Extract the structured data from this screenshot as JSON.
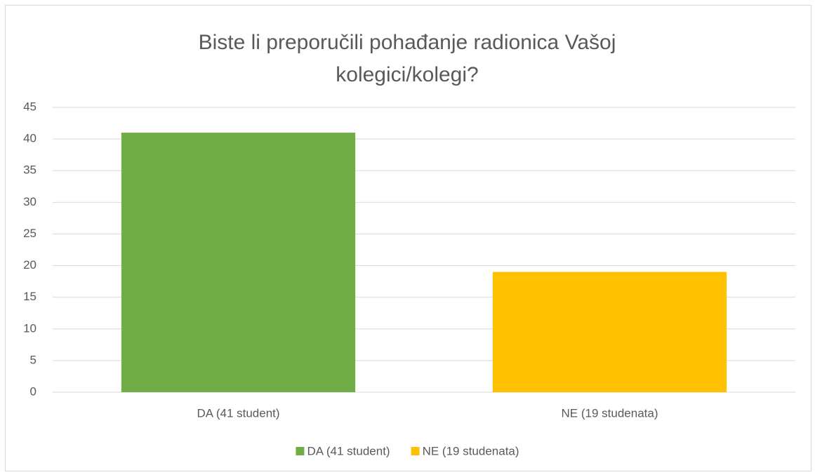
{
  "chart_data": {
    "type": "bar",
    "title": "Biste li preporučili pohađanje radionica Vašoj kolegici/kolegi?",
    "categories": [
      "DA (41 student)",
      "NE (19 studenata)"
    ],
    "values": [
      41,
      19
    ],
    "colors": [
      "#70ad47",
      "#ffc000"
    ],
    "ylim": [
      0,
      45
    ],
    "yticks": [
      0,
      5,
      10,
      15,
      20,
      25,
      30,
      35,
      40,
      45
    ],
    "grid": true,
    "legend": "bottom"
  }
}
